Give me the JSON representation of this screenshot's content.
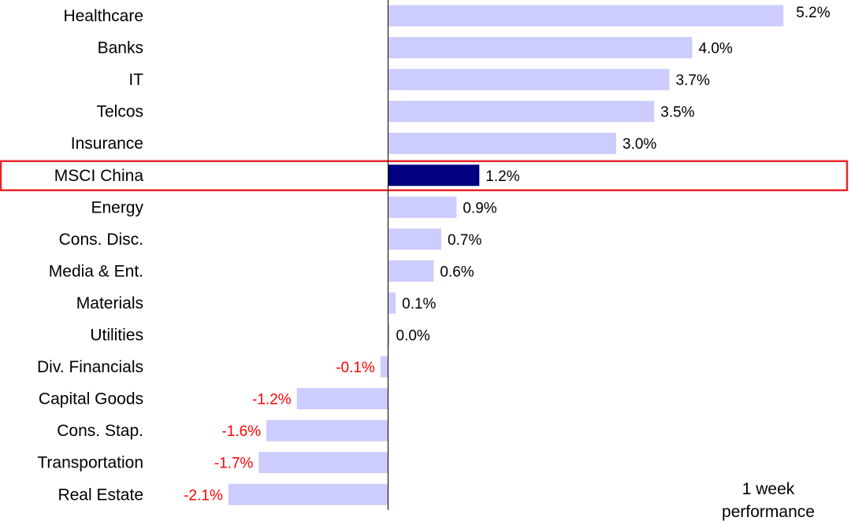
{
  "chart_data": {
    "type": "bar",
    "orientation": "horizontal",
    "categories": [
      "Healthcare",
      "Banks",
      "IT",
      "Telcos",
      "Insurance",
      "MSCI China",
      "Energy",
      "Cons. Disc.",
      "Media & Ent.",
      "Materials",
      "Utilities",
      "Div. Financials",
      "Capital Goods",
      "Cons. Stap.",
      "Transportation",
      "Real Estate"
    ],
    "values": [
      5.2,
      4.0,
      3.7,
      3.5,
      3.0,
      1.2,
      0.9,
      0.7,
      0.6,
      0.1,
      0.0,
      -0.1,
      -1.2,
      -1.6,
      -1.7,
      -2.1
    ],
    "value_labels": [
      "5.2%",
      "4.0%",
      "3.7%",
      "3.5%",
      "3.0%",
      "1.2%",
      "0.9%",
      "0.7%",
      "0.6%",
      "0.1%",
      "0.0%",
      "-0.1%",
      "-1.2%",
      "-1.6%",
      "-1.7%",
      "-2.1%"
    ],
    "highlight_category": "MSCI China",
    "note": [
      "1 week",
      "performance"
    ],
    "xlim": [
      -2.1,
      5.2
    ],
    "grid": false,
    "colors": {
      "bar": "#ccccff",
      "highlight_bar": "#000080",
      "highlight_box": "#e8262b",
      "negative_label": "#ff0000",
      "positive_label": "#000000",
      "axis": "#000000"
    }
  }
}
